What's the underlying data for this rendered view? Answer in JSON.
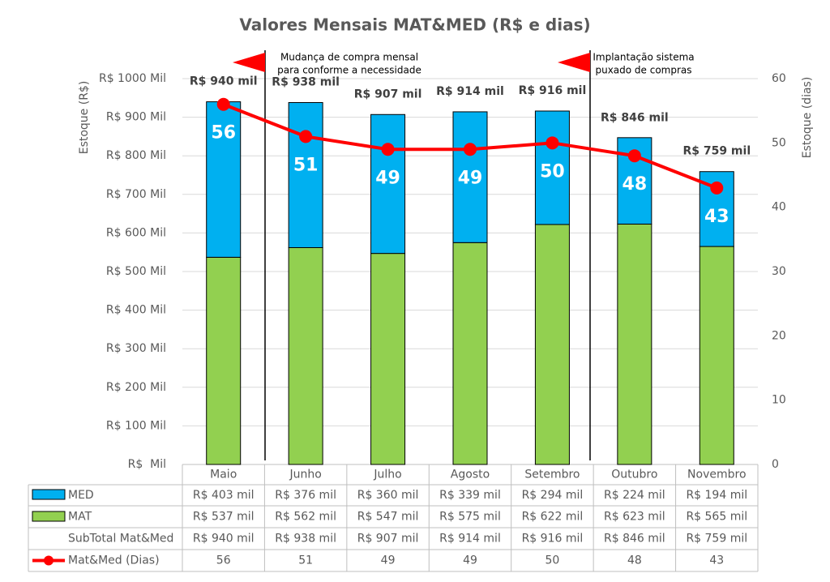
{
  "chart_data": {
    "type": "bar",
    "title": "Valores Mensais MAT&MED (R$ e dias)",
    "y_label": "Estoque (R$)",
    "y2_label": "Estoque (dias)",
    "categories": [
      "Maio",
      "Junho",
      "Julho",
      "Agosto",
      "Setembro",
      "Outubro",
      "Novembro"
    ],
    "series": [
      {
        "name": "MED",
        "color": "#00b0f0",
        "values": [
          403,
          376,
          360,
          339,
          294,
          224,
          194
        ],
        "value_labels": [
          "R$ 403 mil",
          "R$ 376 mil",
          "R$ 360 mil",
          "R$ 339 mil",
          "R$ 294 mil",
          "R$ 224 mil",
          "R$ 194 mil"
        ]
      },
      {
        "name": "MAT",
        "color": "#92d050",
        "values": [
          537,
          562,
          547,
          575,
          622,
          623,
          565
        ],
        "value_labels": [
          "R$ 537 mil",
          "R$ 562 mil",
          "R$ 547 mil",
          "R$ 575 mil",
          "R$ 622 mil",
          "R$ 623 mil",
          "R$ 565 mil"
        ]
      },
      {
        "name": "Mat&Med (Dias)",
        "color": "#ff0000",
        "axis": "y2",
        "values": [
          56,
          51,
          49,
          49,
          50,
          48,
          43
        ]
      }
    ],
    "totals": {
      "name": "SubTotal Mat&Med",
      "values": [
        940,
        938,
        907,
        914,
        916,
        846,
        759
      ],
      "value_labels": [
        "R$ 940 mil",
        "R$ 938 mil",
        "R$ 907 mil",
        "R$ 914 mil",
        "R$ 916 mil",
        "R$ 846 mil",
        "R$ 759 mil"
      ]
    },
    "ylim": [
      0,
      1000
    ],
    "yticks": [
      {
        "value": 0,
        "label": "R$  Mil"
      },
      {
        "value": 100,
        "label": "R$ 100 Mil"
      },
      {
        "value": 200,
        "label": "R$ 200 Mil"
      },
      {
        "value": 300,
        "label": "R$ 300 Mil"
      },
      {
        "value": 400,
        "label": "R$ 400 Mil"
      },
      {
        "value": 500,
        "label": "R$ 500 Mil"
      },
      {
        "value": 600,
        "label": "R$ 600 Mil"
      },
      {
        "value": 700,
        "label": "R$ 700 Mil"
      },
      {
        "value": 800,
        "label": "R$ 800 Mil"
      },
      {
        "value": 900,
        "label": "R$ 900 Mil"
      },
      {
        "value": 1000,
        "label": "R$ 1000 Mil"
      }
    ],
    "y2lim": [
      0,
      60
    ],
    "y2ticks": [
      0,
      10,
      20,
      30,
      40,
      50,
      60
    ],
    "grid": true,
    "annotations": [
      {
        "lines": [
          "Mudança de compra mensal",
          "para conforme a necessidade"
        ]
      },
      {
        "lines": [
          "Implantação sistema",
          "puxado de compras"
        ]
      }
    ]
  }
}
